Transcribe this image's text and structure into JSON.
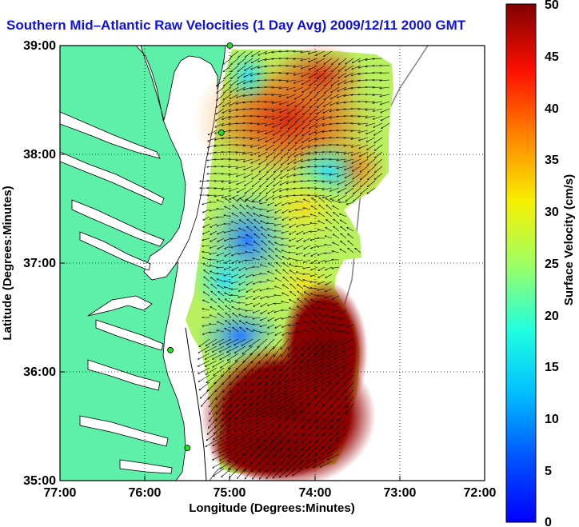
{
  "title": "Southern Mid–Atlantic Raw Velocities (1 Day Avg) 2009/12/11 2000 GMT",
  "map": {
    "xlabel": "Longitude (Degrees:Minutes)",
    "ylabel": "Latitude (Degrees:Minutes)",
    "xticks": [
      "77:00",
      "76:00",
      "75:00",
      "74:00",
      "73:00",
      "72:00"
    ],
    "yticks": [
      "39:00",
      "38:00",
      "37:00",
      "36:00",
      "35:00"
    ],
    "land_color": "#5ef0a8",
    "grid": "dotted"
  },
  "colorbar": {
    "label": "Surface Velocity (cm/s)",
    "ticks": [
      "50",
      "45",
      "40",
      "35",
      "30",
      "25",
      "20",
      "15",
      "10",
      "5",
      "0"
    ],
    "range": [
      0,
      50
    ],
    "colormap": "jet"
  },
  "stations": [
    {
      "lon": -75.0,
      "lat": 39.0
    },
    {
      "lon": -75.1,
      "lat": 38.2
    },
    {
      "lon": -75.7,
      "lat": 36.2
    },
    {
      "lon": -75.5,
      "lat": 35.3
    }
  ]
}
